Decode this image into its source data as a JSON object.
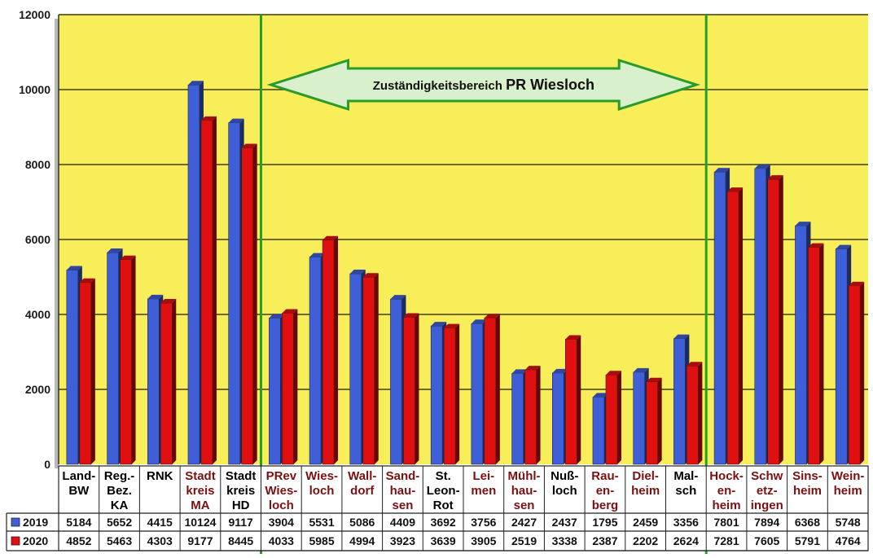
{
  "chart_data": {
    "type": "bar",
    "title": "",
    "xlabel": "",
    "ylabel": "",
    "ylim": [
      0,
      12000
    ],
    "yticks": [
      "0",
      "2000",
      "4000",
      "6000",
      "8000",
      "10000",
      "12000"
    ],
    "grid": true,
    "categories": [
      [
        "Land-",
        "BW"
      ],
      [
        "Reg.-",
        "Bez.",
        "KA"
      ],
      [
        "RNK"
      ],
      [
        "Stadt",
        "kreis",
        "MA"
      ],
      [
        "Stadt",
        "kreis",
        "HD"
      ],
      [
        "PRev",
        "Wies-",
        "loch"
      ],
      [
        "Wies-",
        "loch"
      ],
      [
        "Wall-",
        "dorf"
      ],
      [
        "Sand-",
        "hau-",
        "sen"
      ],
      [
        "St.",
        "Leon-",
        "Rot"
      ],
      [
        "Lei-",
        "men"
      ],
      [
        "Mühl-",
        "hau-",
        "sen"
      ],
      [
        "Nuß-",
        "loch"
      ],
      [
        "Rau-",
        "en-",
        "berg"
      ],
      [
        "Diel-",
        "heim"
      ],
      [
        "Mal-",
        "sch"
      ],
      [
        "Hock-",
        "en-",
        "heim"
      ],
      [
        "Schw",
        "etz-",
        "ingen"
      ],
      [
        "Sins-",
        "heim"
      ],
      [
        "Wein-",
        "heim"
      ]
    ],
    "category_colors": [
      "#000000",
      "#000000",
      "#000000",
      "#7a1010",
      "#000000",
      "#7a1010",
      "#7a1010",
      "#7a1010",
      "#7a1010",
      "#000000",
      "#7a1010",
      "#7a1010",
      "#000000",
      "#7a1010",
      "#7a1010",
      "#000000",
      "#7a1010",
      "#7a1010",
      "#7a1010",
      "#7a1010"
    ],
    "series": [
      {
        "name": "2019",
        "color": "#3f5fd8",
        "values": [
          5184,
          5652,
          4415,
          10124,
          9117,
          3904,
          5531,
          5086,
          4409,
          3692,
          3756,
          2427,
          2437,
          1795,
          2459,
          3356,
          7801,
          7894,
          6368,
          5748
        ],
        "labels": [
          "5184",
          "5652",
          "4415",
          "10124",
          "9117",
          "3904",
          "5531",
          "5086",
          "4409",
          "3692",
          "3756",
          "2427",
          "2437",
          "1795",
          "2459",
          "3356",
          "7801",
          "7894",
          "6368",
          "5748"
        ]
      },
      {
        "name": "2020",
        "color": "#e01010",
        "values": [
          4852,
          5463,
          4303,
          9177,
          8445,
          4033,
          5985,
          4994,
          3923,
          3639,
          3905,
          2519,
          3338,
          2387,
          2202,
          2624,
          7281,
          7605,
          5791,
          4764
        ],
        "labels": [
          "4852",
          "5463",
          "4303",
          "9177",
          "8445",
          "4033",
          "5985",
          "4994",
          "3923",
          "3639",
          "3905",
          "2519",
          "3338",
          "2387",
          "2202",
          "2624",
          "7281",
          "7605",
          "5791",
          "4764"
        ]
      }
    ],
    "annotation": {
      "text_regular": "Zuständigkeitsbereich",
      "text_bold": "PR Wiesloch",
      "range_start": "PRev Wiesloch",
      "range_end": "Malsch"
    },
    "colors": {
      "plot_background": "#f7ee5a",
      "gridline": "#6e6a2e",
      "marker_line": "#22a020",
      "arrow_fill": "#d8f0cc",
      "arrow_stroke": "#2a9a2a"
    }
  }
}
